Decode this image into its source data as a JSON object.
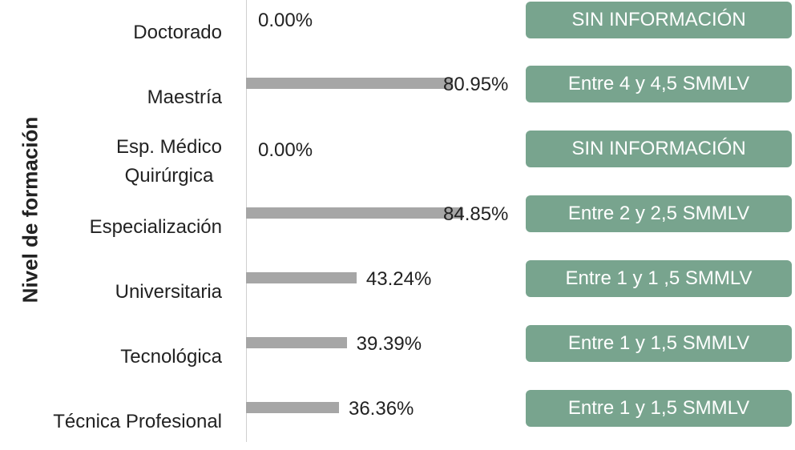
{
  "chart_data": {
    "type": "hbar",
    "y_axis_label": "Nivel de formación",
    "categories": [
      "Doctorado",
      "Maestría",
      "Esp. Médico\nQuirúrgica",
      "Especialización",
      "Universitaria",
      "Tecnológica",
      "Técnica Profesional"
    ],
    "values": [
      0,
      80.95,
      0,
      84.85,
      43.24,
      39.39,
      36.36
    ],
    "value_labels": [
      "0.00%",
      "80.95%",
      "0.00%",
      "84.85%",
      "43.24%",
      "39.39%",
      "36.36%"
    ],
    "annotations": [
      "SIN INFORMACIÓN",
      "Entre 4 y 4,5 SMMLV",
      "SIN INFORMACIÓN",
      "Entre 2 y 2,5 SMMLV",
      "Entre 1 y 1 ,5 SMMLV",
      "Entre 1 y 1,5 SMMLV",
      "Entre 1 y 1,5 SMMLV"
    ],
    "color": "#a6a6a6",
    "annotation_color": "#78a48e",
    "xlim": [
      0,
      100
    ]
  }
}
